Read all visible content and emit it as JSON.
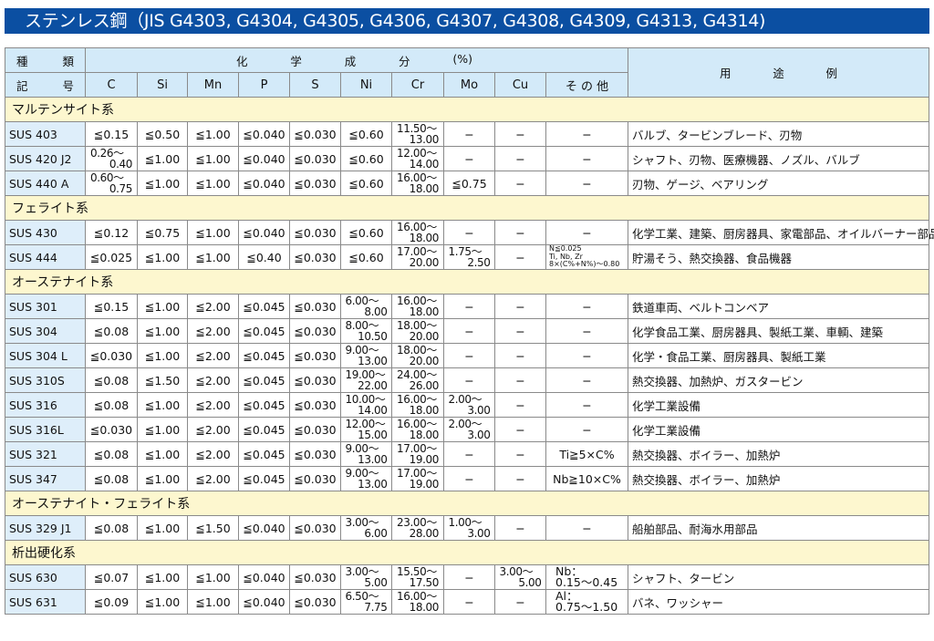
{
  "title": "ステンレス鋼（JIS G4303, G4304, G4305, G4306, G4307, G4308, G4309, G4313, G4314)",
  "header": {
    "kind_1": [
      "種",
      "類"
    ],
    "kind_2": [
      "記",
      "号"
    ],
    "chem": [
      "化",
      "学",
      "成",
      "分",
      "(%)"
    ],
    "cols": [
      "C",
      "Si",
      "Mn",
      "P",
      "S",
      "Ni",
      "Cr",
      "Mo",
      "Cu",
      "そ の 他"
    ],
    "use": [
      "用",
      "途",
      "例"
    ]
  },
  "sections": [
    {
      "name": "マルテンサイト系",
      "rows": [
        [
          "SUS 403",
          "≦0.15",
          "≦0.50",
          "≦1.00",
          "≦0.040",
          "≦0.030",
          "≦0.60",
          "11.50〜13.00",
          "−",
          "−",
          "−",
          "バルブ、タービンブレード、刃物"
        ],
        [
          "SUS 420 J2",
          "0.26〜0.40",
          "≦1.00",
          "≦1.00",
          "≦0.040",
          "≦0.030",
          "≦0.60",
          "12.00〜14.00",
          "−",
          "−",
          "−",
          "シャフト、刃物、医療機器、ノズル、バルブ"
        ],
        [
          "SUS 440 A",
          "0.60〜0.75",
          "≦1.00",
          "≦1.00",
          "≦0.040",
          "≦0.030",
          "≦0.60",
          "16.00〜18.00",
          "≦0.75",
          "−",
          "−",
          "刃物、ゲージ、ベアリング"
        ]
      ]
    },
    {
      "name": "フェライト系",
      "rows": [
        [
          "SUS 430",
          "≦0.12",
          "≦0.75",
          "≦1.00",
          "≦0.040",
          "≦0.030",
          "≦0.60",
          "16.00〜18.00",
          "−",
          "−",
          "−",
          "化学工業、建築、厨房器具、家電部品、オイルバーナー部品"
        ],
        [
          "SUS 444",
          "≦0.025",
          "≦1.00",
          "≦1.00",
          "≦0.40",
          "≦0.030",
          "≦0.60",
          "17.00〜20.00",
          "1.75〜2.50",
          "−",
          "N≦0.025\nTi, Nb, Zr\n8×(C%+N%)〜0.80",
          "貯湯そう、熱交換器、食品機器"
        ]
      ]
    },
    {
      "name": "オーステナイト系",
      "rows": [
        [
          "SUS 301",
          "≦0.15",
          "≦1.00",
          "≦2.00",
          "≦0.045",
          "≦0.030",
          "6.00〜8.00",
          "16.00〜18.00",
          "−",
          "−",
          "−",
          "鉄道車両、ベルトコンベア"
        ],
        [
          "SUS 304",
          "≦0.08",
          "≦1.00",
          "≦2.00",
          "≦0.045",
          "≦0.030",
          "8.00〜10.50",
          "18.00〜20.00",
          "−",
          "−",
          "−",
          "化学食品工業、厨房器具、製紙工業、車輌、建築"
        ],
        [
          "SUS 304 L",
          "≦0.030",
          "≦1.00",
          "≦2.00",
          "≦0.045",
          "≦0.030",
          "9.00〜13.00",
          "18.00〜20.00",
          "−",
          "−",
          "−",
          "化学・食品工業、厨房器具、製紙工業"
        ],
        [
          "SUS 310S",
          "≦0.08",
          "≦1.50",
          "≦2.00",
          "≦0.045",
          "≦0.030",
          "19.00〜22.00",
          "24.00〜26.00",
          "−",
          "−",
          "−",
          "熱交換器、加熱炉、ガスタービン"
        ],
        [
          "SUS 316",
          "≦0.08",
          "≦1.00",
          "≦2.00",
          "≦0.045",
          "≦0.030",
          "10.00〜14.00",
          "16.00〜18.00",
          "2.00〜3.00",
          "−",
          "−",
          "化学工業設備"
        ],
        [
          "SUS 316L",
          "≦0.030",
          "≦1.00",
          "≦2.00",
          "≦0.045",
          "≦0.030",
          "12.00〜15.00",
          "16.00〜18.00",
          "2.00〜3.00",
          "−",
          "−",
          "化学工業設備"
        ],
        [
          "SUS 321",
          "≦0.08",
          "≦1.00",
          "≦2.00",
          "≦0.045",
          "≦0.030",
          "9.00〜13.00",
          "17.00〜19.00",
          "−",
          "−",
          "Ti≧5×C%",
          "熱交換器、ボイラー、加熱炉"
        ],
        [
          "SUS 347",
          "≦0.08",
          "≦1.00",
          "≦2.00",
          "≦0.045",
          "≦0.030",
          "9.00〜13.00",
          "17.00〜19.00",
          "−",
          "−",
          "Nb≧10×C%",
          "熱交換器、ボイラー、加熱炉"
        ]
      ]
    },
    {
      "name": "オーステナイト・フェライト系",
      "rows": [
        [
          "SUS 329 J1",
          "≦0.08",
          "≦1.00",
          "≦1.50",
          "≦0.040",
          "≦0.030",
          "3.00〜6.00",
          "23.00〜28.00",
          "1.00〜3.00",
          "−",
          "−",
          "船舶部品、耐海水用部品"
        ]
      ]
    },
    {
      "name": "析出硬化系",
      "rows": [
        [
          "SUS 630",
          "≦0.07",
          "≦1.00",
          "≦1.00",
          "≦0.040",
          "≦0.030",
          "3.00〜5.00",
          "15.50〜17.50",
          "−",
          "3.00〜5.00",
          "Nb：\n0.15〜0.45",
          "シャフト、タービン"
        ],
        [
          "SUS 631",
          "≦0.09",
          "≦1.00",
          "≦1.00",
          "≦0.040",
          "≦0.030",
          "6.50〜7.75",
          "16.00〜18.00",
          "−",
          "−",
          "Al：\n0.75〜1.50",
          "バネ、ワッシャー"
        ]
      ]
    }
  ]
}
